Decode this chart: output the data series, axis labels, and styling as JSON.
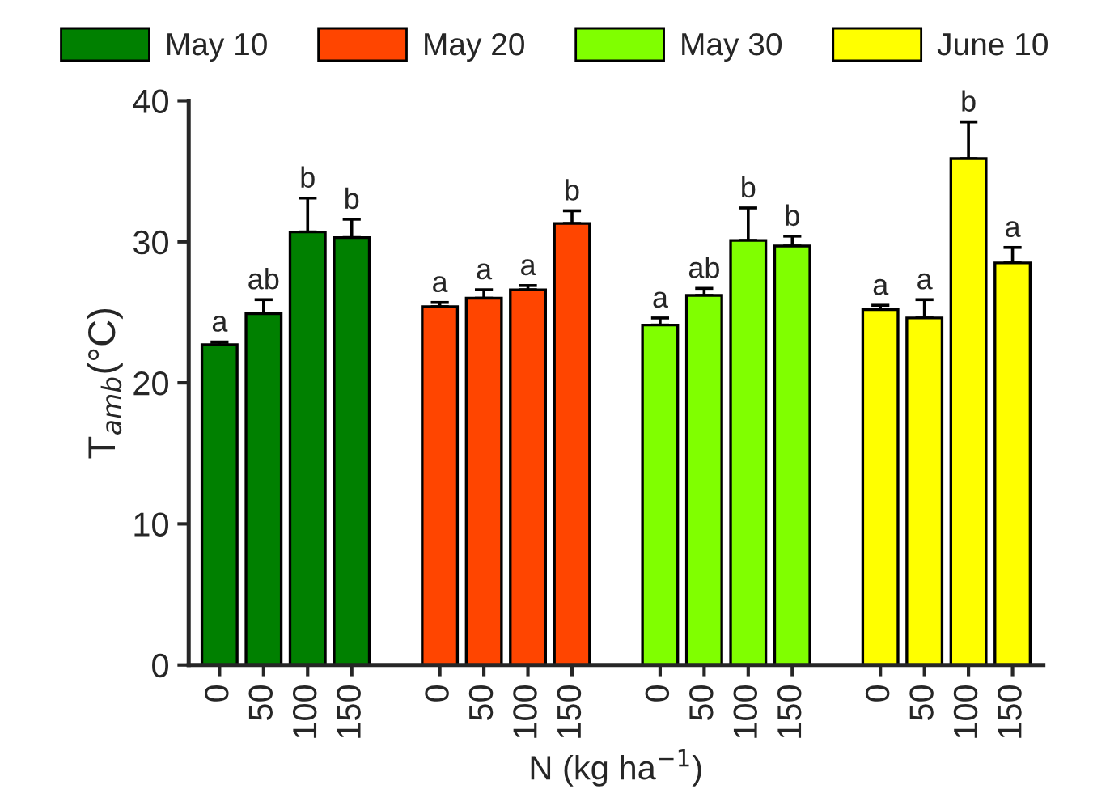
{
  "chart_data": {
    "type": "bar",
    "xlabel": "N (kg ha$^{−1}$)",
    "ylabel": "T$_{amb}$(°C)",
    "categories": [
      "0",
      "50",
      "100",
      "150",
      null,
      "0",
      "50",
      "100",
      "150",
      null,
      "0",
      "50",
      "100",
      "150",
      null,
      "0",
      "50",
      "100",
      "150"
    ],
    "series": [
      {
        "name": "May 10",
        "color": "#008000",
        "values": [
          22.7,
          24.9,
          30.7,
          30.3,
          null,
          null,
          null,
          null,
          null,
          null,
          null,
          null,
          null,
          null,
          null,
          null,
          null,
          null,
          null
        ],
        "errors": [
          0.2,
          1.0,
          2.4,
          1.3,
          null,
          null,
          null,
          null,
          null,
          null,
          null,
          null,
          null,
          null,
          null,
          null,
          null,
          null,
          null
        ],
        "value_labels": [
          "a",
          "ab",
          "b",
          "b",
          null,
          null,
          null,
          null,
          null,
          null,
          null,
          null,
          null,
          null,
          null,
          null,
          null,
          null,
          null
        ]
      },
      {
        "name": "May 20",
        "color": "#ff4500",
        "values": [
          null,
          null,
          null,
          null,
          null,
          25.4,
          26.0,
          26.6,
          31.3,
          null,
          null,
          null,
          null,
          null,
          null,
          null,
          null,
          null,
          null
        ],
        "errors": [
          null,
          null,
          null,
          null,
          null,
          0.3,
          0.6,
          0.3,
          0.9,
          null,
          null,
          null,
          null,
          null,
          null,
          null,
          null,
          null,
          null
        ],
        "value_labels": [
          null,
          null,
          null,
          null,
          null,
          "a",
          "a",
          "a",
          "b",
          null,
          null,
          null,
          null,
          null,
          null,
          null,
          null,
          null,
          null
        ]
      },
      {
        "name": "May 30",
        "color": "#80ff00",
        "values": [
          null,
          null,
          null,
          null,
          null,
          null,
          null,
          null,
          null,
          null,
          24.1,
          26.2,
          30.1,
          29.7,
          null,
          null,
          null,
          null,
          null
        ],
        "errors": [
          null,
          null,
          null,
          null,
          null,
          null,
          null,
          null,
          null,
          null,
          0.5,
          0.5,
          2.3,
          0.7,
          null,
          null,
          null,
          null,
          null
        ],
        "value_labels": [
          null,
          null,
          null,
          null,
          null,
          null,
          null,
          null,
          null,
          null,
          "a",
          "ab",
          "b",
          "b",
          null,
          null,
          null,
          null,
          null
        ]
      },
      {
        "name": "June 10",
        "color": "#ffff00",
        "values": [
          null,
          null,
          null,
          null,
          null,
          null,
          null,
          null,
          null,
          null,
          null,
          null,
          null,
          null,
          null,
          25.2,
          24.6,
          35.9,
          28.5
        ],
        "errors": [
          null,
          null,
          null,
          null,
          null,
          null,
          null,
          null,
          null,
          null,
          null,
          null,
          null,
          null,
          null,
          0.3,
          1.3,
          2.6,
          1.1
        ],
        "value_labels": [
          null,
          null,
          null,
          null,
          null,
          null,
          null,
          null,
          null,
          null,
          null,
          null,
          null,
          null,
          null,
          "a",
          "a",
          "b",
          "a"
        ]
      }
    ],
    "ylim": [
      0,
      40
    ],
    "yticks": [
      0,
      10,
      20,
      30,
      40
    ],
    "grid": false,
    "legend": "top"
  }
}
